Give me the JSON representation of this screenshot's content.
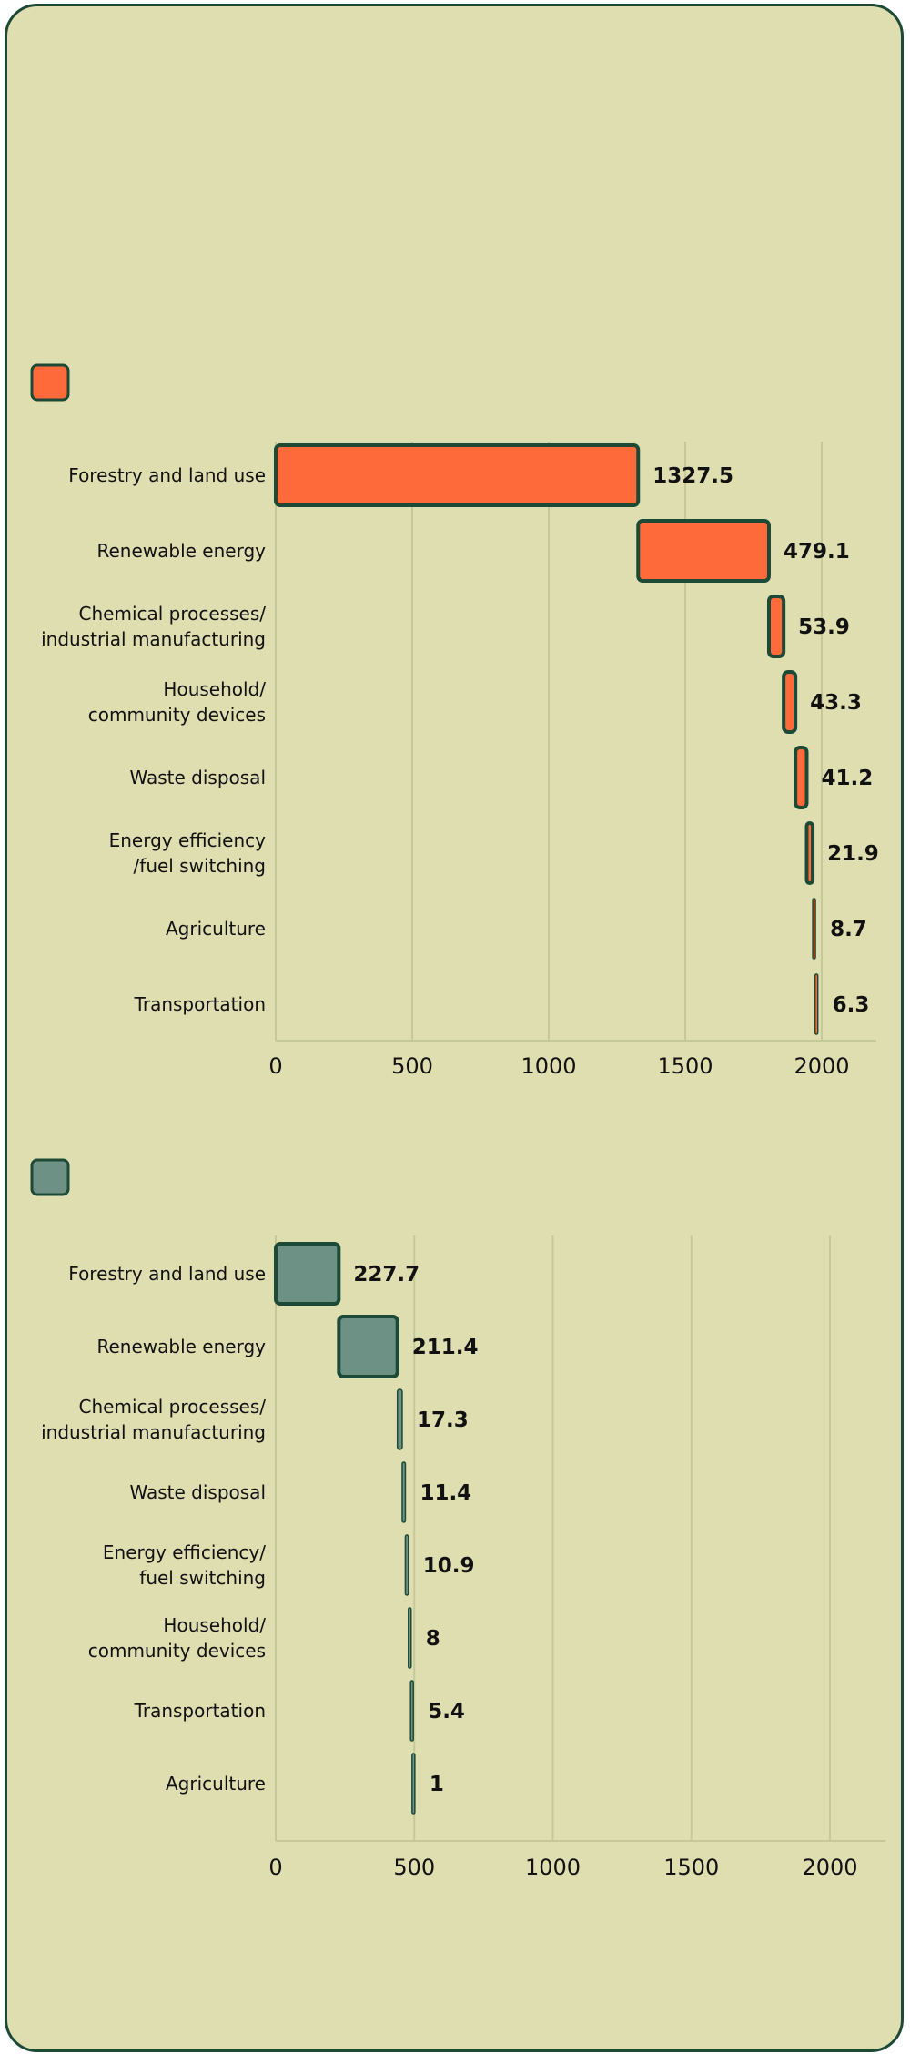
{
  "chart_data": [
    {
      "type": "bar",
      "legend_color": "#ff6a3a",
      "bar_color": "#ff6a3a",
      "categories": [
        [
          "Forestry and land use"
        ],
        [
          "Renewable energy"
        ],
        [
          "Chemical processes/",
          "industrial manufacturing"
        ],
        [
          "Household/",
          "community devices"
        ],
        [
          "Waste disposal"
        ],
        [
          "Energy efficiency",
          "/fuel switching"
        ],
        [
          "Agriculture"
        ],
        [
          "Transportation"
        ]
      ],
      "values": [
        1327.5,
        479.1,
        53.9,
        43.3,
        41.2,
        21.9,
        8.7,
        6.3
      ],
      "xlim": [
        0,
        2200
      ],
      "xticks": [
        0,
        500,
        1000,
        1500,
        2000
      ],
      "grid": true
    },
    {
      "type": "bar",
      "legend_color": "#6d9285",
      "bar_color": "#6d9285",
      "categories": [
        [
          "Forestry and land use"
        ],
        [
          "Renewable energy"
        ],
        [
          "Chemical processes/",
          "industrial manufacturing"
        ],
        [
          "Waste disposal"
        ],
        [
          "Energy efficiency/",
          "fuel switching"
        ],
        [
          "Household/",
          "community devices"
        ],
        [
          "Transportation"
        ],
        [
          "Agriculture"
        ]
      ],
      "values": [
        227.7,
        211.4,
        17.3,
        11.4,
        10.9,
        8,
        5.4,
        1
      ],
      "xlim": [
        0,
        2200
      ],
      "xticks": [
        0,
        500,
        1000,
        1500,
        2000
      ],
      "grid": true
    }
  ]
}
